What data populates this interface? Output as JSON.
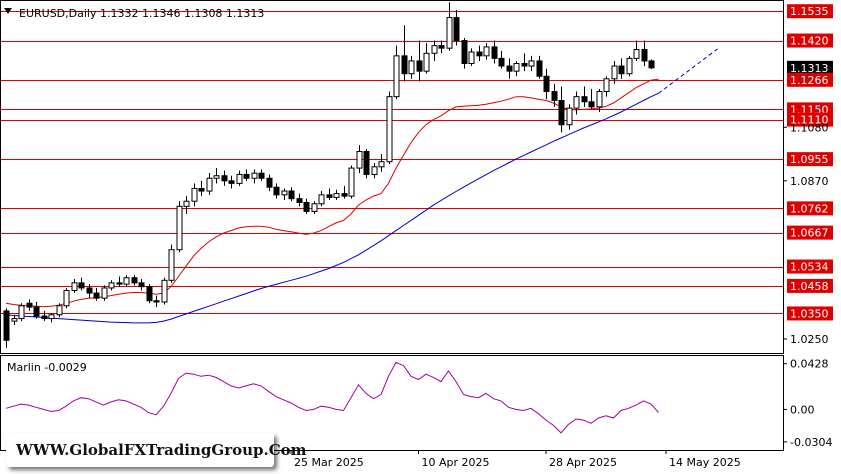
{
  "symbol_header": "EURUSD,Daily  1.1332 1.1346 1.1308 1.1313",
  "indicator_label": "Marlin -0.0029",
  "watermark": "WWW.GlobalFXTradingGroup.Com",
  "colors": {
    "level_line": "#dd0000",
    "level_label_bg": "#dd0000",
    "fast_ma": "#dd0000",
    "slow_ma": "#0000c8",
    "oscillator": "#a000a0",
    "bull_candle": "#ffffff",
    "bear_candle": "#000000",
    "current_price_bg": "#000000"
  },
  "chart_data": [
    {
      "type": "candlestick",
      "panel": "price",
      "symbol": "EURUSD",
      "timeframe": "Daily",
      "ohlc_header": {
        "open": 1.1332,
        "high": 1.1346,
        "low": 1.1308,
        "close": 1.1313
      },
      "y_tick_labels": [
        "1.1535",
        "1.1420",
        "1.1313",
        "1.1266",
        "1.1150",
        "1.1110",
        "1.1080",
        "1.0955",
        "1.0870",
        "1.0762",
        "1.0667",
        "1.0534",
        "1.0458",
        "1.0350",
        "1.0250"
      ],
      "ylim": [
        1.0195,
        1.1575
      ],
      "x_tick_labels": [
        "25 Mar 2025",
        "10 Apr 2025",
        "28 Apr 2025",
        "14 May 2025"
      ],
      "levels": [
        1.1535,
        1.142,
        1.1266,
        1.115,
        1.111,
        1.0955,
        1.0762,
        1.0667,
        1.0534,
        1.0458,
        1.035
      ],
      "current_price": 1.1313,
      "candles": [
        {
          "o": 1.036,
          "h": 1.037,
          "l": 1.0215,
          "c": 1.0245
        },
        {
          "o": 1.032,
          "h": 1.0345,
          "l": 1.0305,
          "c": 1.033
        },
        {
          "o": 1.033,
          "h": 1.039,
          "l": 1.032,
          "c": 1.038
        },
        {
          "o": 1.039,
          "h": 1.0405,
          "l": 1.036,
          "c": 1.0375
        },
        {
          "o": 1.0375,
          "h": 1.0395,
          "l": 1.033,
          "c": 1.034
        },
        {
          "o": 1.034,
          "h": 1.036,
          "l": 1.032,
          "c": 1.033
        },
        {
          "o": 1.033,
          "h": 1.035,
          "l": 1.0315,
          "c": 1.0345
        },
        {
          "o": 1.0345,
          "h": 1.039,
          "l": 1.0335,
          "c": 1.038
        },
        {
          "o": 1.038,
          "h": 1.045,
          "l": 1.037,
          "c": 1.044
        },
        {
          "o": 1.044,
          "h": 1.0485,
          "l": 1.043,
          "c": 1.047
        },
        {
          "o": 1.047,
          "h": 1.049,
          "l": 1.044,
          "c": 1.045
        },
        {
          "o": 1.045,
          "h": 1.0465,
          "l": 1.041,
          "c": 1.043
        },
        {
          "o": 1.043,
          "h": 1.045,
          "l": 1.04,
          "c": 1.041
        },
        {
          "o": 1.041,
          "h": 1.046,
          "l": 1.04,
          "c": 1.045
        },
        {
          "o": 1.045,
          "h": 1.048,
          "l": 1.044,
          "c": 1.047
        },
        {
          "o": 1.047,
          "h": 1.0495,
          "l": 1.0455,
          "c": 1.0465
        },
        {
          "o": 1.0465,
          "h": 1.05,
          "l": 1.0455,
          "c": 1.049
        },
        {
          "o": 1.049,
          "h": 1.05,
          "l": 1.046,
          "c": 1.047
        },
        {
          "o": 1.047,
          "h": 1.0485,
          "l": 1.044,
          "c": 1.0455
        },
        {
          "o": 1.0455,
          "h": 1.0465,
          "l": 1.039,
          "c": 1.04
        },
        {
          "o": 1.04,
          "h": 1.042,
          "l": 1.0375,
          "c": 1.0395
        },
        {
          "o": 1.0395,
          "h": 1.049,
          "l": 1.0385,
          "c": 1.048
        },
        {
          "o": 1.048,
          "h": 1.062,
          "l": 1.047,
          "c": 1.06
        },
        {
          "o": 1.06,
          "h": 1.079,
          "l": 1.059,
          "c": 1.077
        },
        {
          "o": 1.077,
          "h": 1.081,
          "l": 1.074,
          "c": 1.079
        },
        {
          "o": 1.079,
          "h": 1.086,
          "l": 1.077,
          "c": 1.084
        },
        {
          "o": 1.084,
          "h": 1.087,
          "l": 1.081,
          "c": 1.083
        },
        {
          "o": 1.083,
          "h": 1.09,
          "l": 1.0815,
          "c": 1.088
        },
        {
          "o": 1.088,
          "h": 1.092,
          "l": 1.086,
          "c": 1.089
        },
        {
          "o": 1.089,
          "h": 1.091,
          "l": 1.085,
          "c": 1.087
        },
        {
          "o": 1.087,
          "h": 1.089,
          "l": 1.084,
          "c": 1.086
        },
        {
          "o": 1.086,
          "h": 1.091,
          "l": 1.085,
          "c": 1.0895
        },
        {
          "o": 1.0895,
          "h": 1.0915,
          "l": 1.087,
          "c": 1.088
        },
        {
          "o": 1.088,
          "h": 1.0915,
          "l": 1.086,
          "c": 1.09
        },
        {
          "o": 1.09,
          "h": 1.0915,
          "l": 1.087,
          "c": 1.088
        },
        {
          "o": 1.088,
          "h": 1.0895,
          "l": 1.083,
          "c": 1.0845
        },
        {
          "o": 1.0845,
          "h": 1.086,
          "l": 1.08,
          "c": 1.0815
        },
        {
          "o": 1.0815,
          "h": 1.084,
          "l": 1.0795,
          "c": 1.083
        },
        {
          "o": 1.083,
          "h": 1.0845,
          "l": 1.079,
          "c": 1.08
        },
        {
          "o": 1.08,
          "h": 1.082,
          "l": 1.077,
          "c": 1.0785
        },
        {
          "o": 1.0785,
          "h": 1.08,
          "l": 1.074,
          "c": 1.075
        },
        {
          "o": 1.075,
          "h": 1.079,
          "l": 1.074,
          "c": 1.078
        },
        {
          "o": 1.078,
          "h": 1.083,
          "l": 1.077,
          "c": 1.0815
        },
        {
          "o": 1.0815,
          "h": 1.084,
          "l": 1.0795,
          "c": 1.0805
        },
        {
          "o": 1.0805,
          "h": 1.0835,
          "l": 1.0795,
          "c": 1.082
        },
        {
          "o": 1.082,
          "h": 1.085,
          "l": 1.08,
          "c": 1.081
        },
        {
          "o": 1.081,
          "h": 1.093,
          "l": 1.08,
          "c": 1.092
        },
        {
          "o": 1.092,
          "h": 1.101,
          "l": 1.09,
          "c": 1.0985
        },
        {
          "o": 1.0985,
          "h": 1.0995,
          "l": 1.088,
          "c": 1.0895
        },
        {
          "o": 1.0895,
          "h": 1.094,
          "l": 1.088,
          "c": 1.0925
        },
        {
          "o": 1.0925,
          "h": 1.0975,
          "l": 1.0905,
          "c": 1.0945
        },
        {
          "o": 1.0945,
          "h": 1.122,
          "l": 1.0935,
          "c": 1.12
        },
        {
          "o": 1.12,
          "h": 1.14,
          "l": 1.119,
          "c": 1.136
        },
        {
          "o": 1.136,
          "h": 1.148,
          "l": 1.126,
          "c": 1.129
        },
        {
          "o": 1.129,
          "h": 1.136,
          "l": 1.127,
          "c": 1.134
        },
        {
          "o": 1.134,
          "h": 1.142,
          "l": 1.126,
          "c": 1.13
        },
        {
          "o": 1.13,
          "h": 1.141,
          "l": 1.129,
          "c": 1.137
        },
        {
          "o": 1.137,
          "h": 1.142,
          "l": 1.134,
          "c": 1.14
        },
        {
          "o": 1.14,
          "h": 1.142,
          "l": 1.137,
          "c": 1.139
        },
        {
          "o": 1.139,
          "h": 1.157,
          "l": 1.138,
          "c": 1.151
        },
        {
          "o": 1.151,
          "h": 1.154,
          "l": 1.14,
          "c": 1.142
        },
        {
          "o": 1.142,
          "h": 1.143,
          "l": 1.131,
          "c": 1.133
        },
        {
          "o": 1.133,
          "h": 1.139,
          "l": 1.132,
          "c": 1.1375
        },
        {
          "o": 1.1375,
          "h": 1.14,
          "l": 1.134,
          "c": 1.136
        },
        {
          "o": 1.136,
          "h": 1.141,
          "l": 1.1345,
          "c": 1.1395
        },
        {
          "o": 1.1395,
          "h": 1.142,
          "l": 1.133,
          "c": 1.135
        },
        {
          "o": 1.135,
          "h": 1.138,
          "l": 1.131,
          "c": 1.132
        },
        {
          "o": 1.132,
          "h": 1.135,
          "l": 1.127,
          "c": 1.13
        },
        {
          "o": 1.13,
          "h": 1.134,
          "l": 1.128,
          "c": 1.133
        },
        {
          "o": 1.133,
          "h": 1.137,
          "l": 1.13,
          "c": 1.132
        },
        {
          "o": 1.132,
          "h": 1.136,
          "l": 1.13,
          "c": 1.134
        },
        {
          "o": 1.134,
          "h": 1.136,
          "l": 1.127,
          "c": 1.128
        },
        {
          "o": 1.128,
          "h": 1.131,
          "l": 1.119,
          "c": 1.122
        },
        {
          "o": 1.122,
          "h": 1.125,
          "l": 1.116,
          "c": 1.1185
        },
        {
          "o": 1.1185,
          "h": 1.124,
          "l": 1.106,
          "c": 1.109
        },
        {
          "o": 1.109,
          "h": 1.117,
          "l": 1.107,
          "c": 1.1155
        },
        {
          "o": 1.1155,
          "h": 1.122,
          "l": 1.113,
          "c": 1.12
        },
        {
          "o": 1.12,
          "h": 1.124,
          "l": 1.116,
          "c": 1.118
        },
        {
          "o": 1.118,
          "h": 1.123,
          "l": 1.115,
          "c": 1.116
        },
        {
          "o": 1.116,
          "h": 1.123,
          "l": 1.114,
          "c": 1.122
        },
        {
          "o": 1.122,
          "h": 1.128,
          "l": 1.12,
          "c": 1.127
        },
        {
          "o": 1.127,
          "h": 1.134,
          "l": 1.125,
          "c": 1.132
        },
        {
          "o": 1.132,
          "h": 1.135,
          "l": 1.127,
          "c": 1.129
        },
        {
          "o": 1.129,
          "h": 1.136,
          "l": 1.128,
          "c": 1.135
        },
        {
          "o": 1.135,
          "h": 1.142,
          "l": 1.134,
          "c": 1.1385
        },
        {
          "o": 1.1385,
          "h": 1.142,
          "l": 1.132,
          "c": 1.134
        },
        {
          "o": 1.134,
          "h": 1.1346,
          "l": 1.1308,
          "c": 1.1313
        }
      ],
      "fast_ma": [
        1.039,
        1.0385,
        1.0382,
        1.038,
        1.0378,
        1.0376,
        1.0378,
        1.0382,
        1.039,
        1.0398,
        1.0405,
        1.041,
        1.0412,
        1.0415,
        1.042,
        1.0425,
        1.043,
        1.0432,
        1.0432,
        1.043,
        1.0425,
        1.043,
        1.0455,
        1.0495,
        1.0535,
        1.0575,
        1.0605,
        1.063,
        1.065,
        1.0665,
        1.0675,
        1.0685,
        1.069,
        1.0692,
        1.0692,
        1.0688,
        1.068,
        1.0675,
        1.067,
        1.0665,
        1.066,
        1.0665,
        1.0675,
        1.069,
        1.0705,
        1.0715,
        1.074,
        1.0775,
        1.0795,
        1.081,
        1.082,
        1.086,
        1.092,
        1.097,
        1.102,
        1.106,
        1.109,
        1.111,
        1.1125,
        1.1145,
        1.116,
        1.1162,
        1.1164,
        1.1166,
        1.117,
        1.1176,
        1.1182,
        1.119,
        1.12,
        1.12,
        1.1195,
        1.119,
        1.1185,
        1.1175,
        1.116,
        1.115,
        1.1148,
        1.115,
        1.1152,
        1.1155,
        1.1162,
        1.1175,
        1.1195,
        1.1215,
        1.1235,
        1.125,
        1.1265,
        1.1268
      ],
      "slow_ma": [
        1.0345,
        1.0342,
        1.034,
        1.0338,
        1.0336,
        1.0334,
        1.0332,
        1.033,
        1.0328,
        1.0326,
        1.0324,
        1.0322,
        1.032,
        1.0318,
        1.0316,
        1.0315,
        1.0314,
        1.0313,
        1.0313,
        1.0313,
        1.0315,
        1.032,
        1.0328,
        1.0338,
        1.0348,
        1.0358,
        1.0368,
        1.0378,
        1.0388,
        1.0398,
        1.0408,
        1.0418,
        1.0428,
        1.0438,
        1.0448,
        1.0456,
        1.0464,
        1.0472,
        1.048,
        1.0488,
        1.0496,
        1.0506,
        1.0516,
        1.0526,
        1.0538,
        1.055,
        1.0565,
        1.058,
        1.0598,
        1.0616,
        1.0635,
        1.0655,
        1.0675,
        1.0695,
        1.0715,
        1.0735,
        1.0755,
        1.0775,
        1.0793,
        1.0811,
        1.0828,
        1.0845,
        1.0862,
        1.0878,
        1.0894,
        1.091,
        1.0925,
        1.094,
        1.0955,
        1.0969,
        1.0983,
        1.0997,
        1.1011,
        1.1025,
        1.1038,
        1.1051,
        1.1064,
        1.1077,
        1.1089,
        1.1101,
        1.1113,
        1.1126,
        1.114,
        1.1155,
        1.117,
        1.1185,
        1.12,
        1.1213
      ],
      "slow_ma_projection": {
        "from_index": 87,
        "to_index": 95,
        "to_value": 1.139
      }
    },
    {
      "type": "line",
      "panel": "indicator",
      "series": [
        {
          "name": "Marlin",
          "current": -0.0029,
          "values": [
            0.001,
            0.003,
            0.005,
            0.004,
            0.002,
            0.0,
            -0.002,
            -0.001,
            0.003,
            0.008,
            0.011,
            0.01,
            0.007,
            0.004,
            0.007,
            0.009,
            0.008,
            0.005,
            0.002,
            -0.003,
            -0.005,
            0.003,
            0.015,
            0.029,
            0.034,
            0.033,
            0.031,
            0.032,
            0.03,
            0.026,
            0.022,
            0.02,
            0.022,
            0.024,
            0.022,
            0.017,
            0.012,
            0.009,
            0.006,
            0.002,
            -0.001,
            0.0,
            0.003,
            0.002,
            0.0,
            -0.001,
            0.011,
            0.023,
            0.015,
            0.01,
            0.014,
            0.031,
            0.044,
            0.041,
            0.031,
            0.028,
            0.033,
            0.03,
            0.026,
            0.036,
            0.026,
            0.014,
            0.012,
            0.011,
            0.015,
            0.01,
            0.008,
            0.002,
            0.0,
            -0.001,
            0.001,
            -0.004,
            -0.01,
            -0.015,
            -0.022,
            -0.014,
            -0.009,
            -0.01,
            -0.013,
            -0.008,
            -0.006,
            -0.008,
            -0.001,
            0.001,
            0.004,
            0.008,
            0.005,
            -0.0029
          ]
        }
      ],
      "y_tick_labels": [
        "0.0428",
        "0.00",
        "-0.0304"
      ],
      "ylim": [
        -0.038,
        0.05
      ]
    }
  ]
}
